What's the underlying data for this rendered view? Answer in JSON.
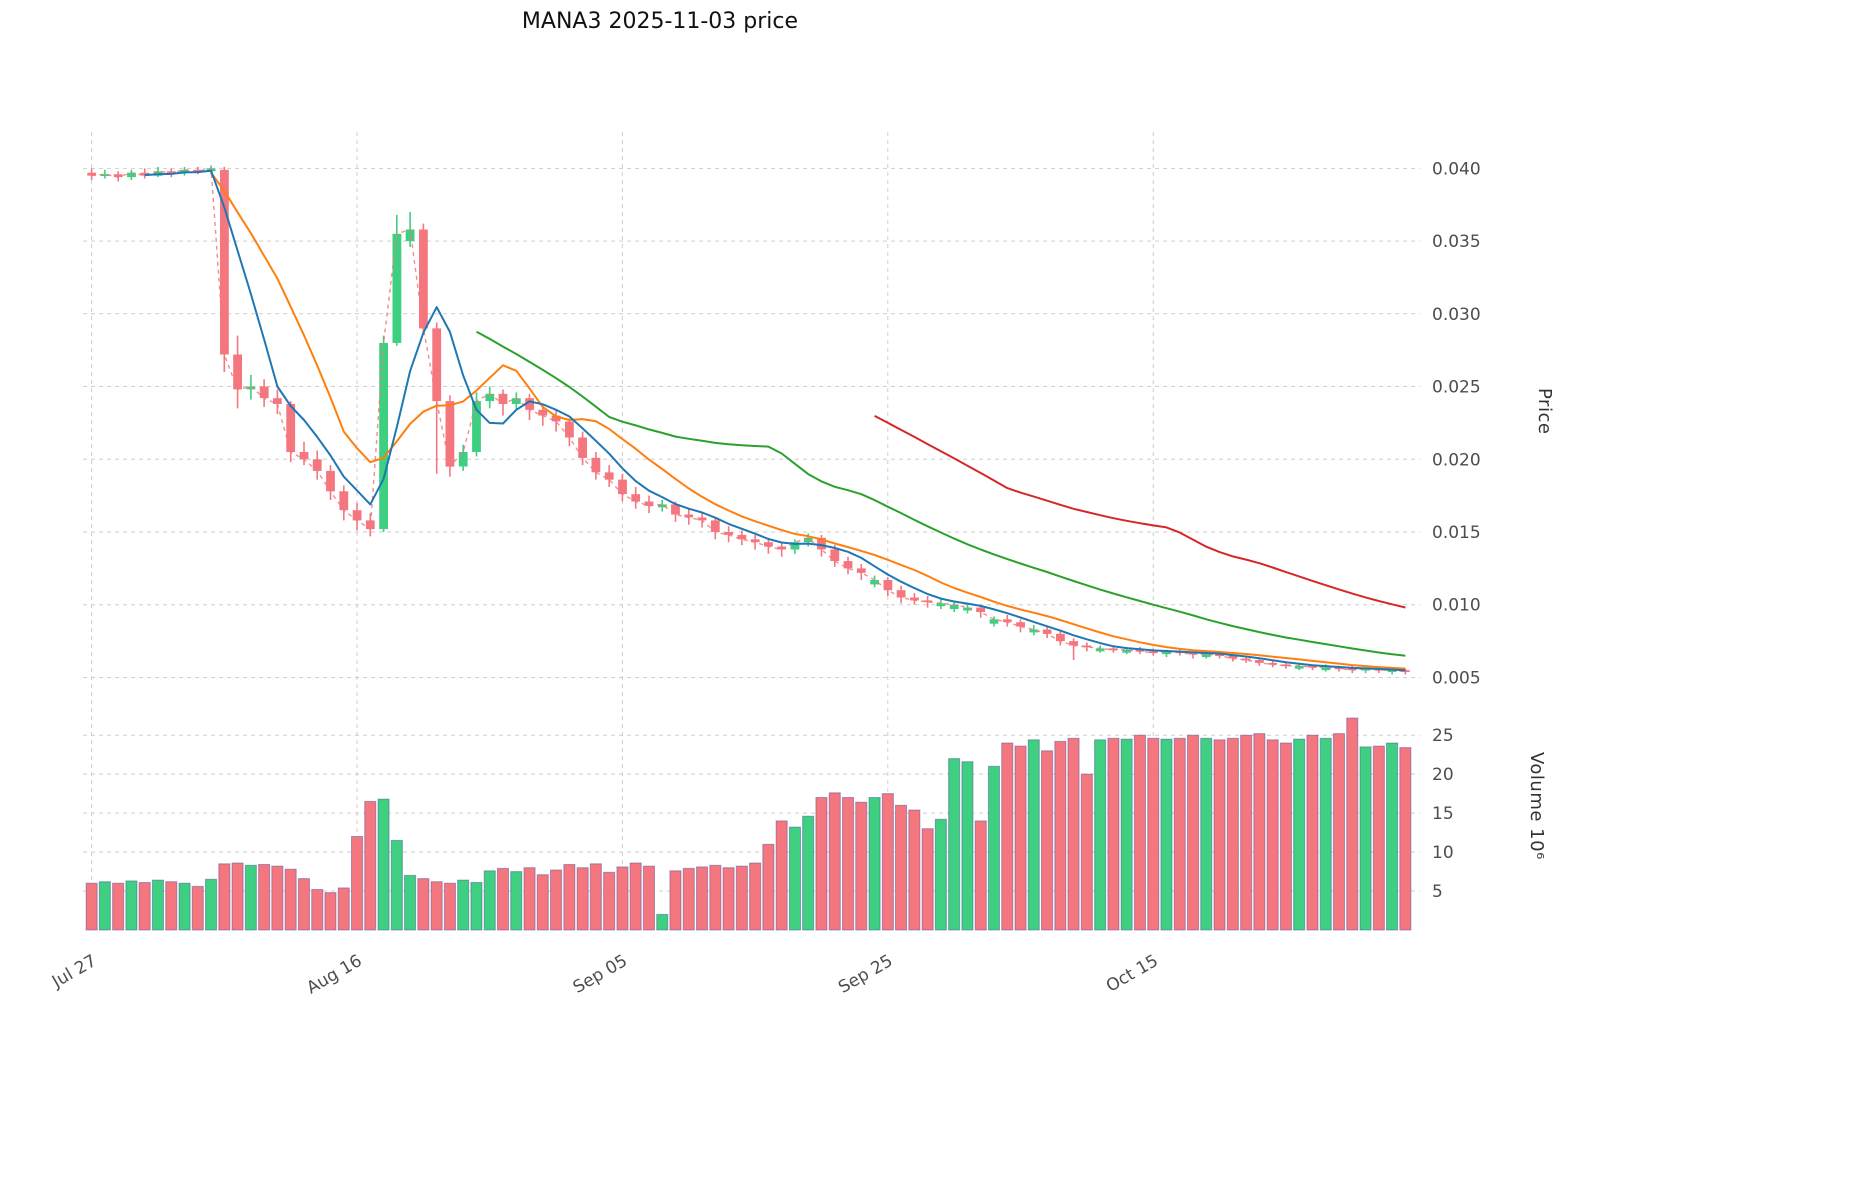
{
  "title": "MANA3  2025-11-03  price",
  "axes": {
    "price_axis_label": "Price",
    "volume_axis_label": "Volume  10⁶",
    "price_ticks": [
      0.04,
      0.035,
      0.03,
      0.025,
      0.02,
      0.015,
      0.01,
      0.005
    ],
    "volume_ticks": [
      25,
      20,
      15,
      10,
      5
    ],
    "x_ticks": [
      {
        "label": "Jul 27",
        "index": 0
      },
      {
        "label": "Aug 16",
        "index": 20
      },
      {
        "label": "Sep 05",
        "index": 40
      },
      {
        "label": "Sep 25",
        "index": 60
      },
      {
        "label": "Oct 15",
        "index": 80
      }
    ]
  },
  "colors": {
    "up": "#3ecf81",
    "down": "#f4767e",
    "ma5": "#1f77b4",
    "ma10": "#ff7f0e",
    "ma30": "#2ca02c",
    "ma60": "#d62728",
    "close_dash": "#f4767e",
    "grid": "#c9c9c9",
    "tick_text": "#4d4d4d",
    "volume_edge": "#4a4a9a"
  },
  "chart_data": {
    "type": "candlestick",
    "symbol": "MANA3",
    "date": "2025-11-03",
    "panels": [
      "price",
      "volume"
    ],
    "volume_unit": "1e6",
    "grid": true,
    "price_range": [
      0.004,
      0.0425
    ],
    "volume_range": [
      0,
      29
    ],
    "ma_windows": [
      5,
      10,
      30,
      60
    ],
    "open": [
      0.0397,
      0.0395,
      0.0396,
      0.0394,
      0.0397,
      0.0395,
      0.0398,
      0.0397,
      0.0399,
      0.0398,
      0.0399,
      0.0272,
      0.0248,
      0.025,
      0.0242,
      0.0238,
      0.0205,
      0.02,
      0.0192,
      0.0178,
      0.0165,
      0.0158,
      0.0152,
      0.028,
      0.035,
      0.0358,
      0.029,
      0.024,
      0.0195,
      0.0205,
      0.024,
      0.0245,
      0.0238,
      0.0242,
      0.0234,
      0.023,
      0.0226,
      0.0215,
      0.0201,
      0.0191,
      0.0186,
      0.0176,
      0.0171,
      0.0167,
      0.0169,
      0.0162,
      0.016,
      0.0158,
      0.015,
      0.0148,
      0.0145,
      0.0143,
      0.014,
      0.0138,
      0.0143,
      0.0146,
      0.0138,
      0.013,
      0.0125,
      0.0114,
      0.0117,
      0.011,
      0.0105,
      0.0103,
      0.0099,
      0.0097,
      0.0096,
      0.0098,
      0.0087,
      0.009,
      0.0088,
      0.0081,
      0.0083,
      0.008,
      0.0075,
      0.0072,
      0.0068,
      0.007,
      0.0067,
      0.0069,
      0.0068,
      0.0066,
      0.0068,
      0.0067,
      0.0064,
      0.0066,
      0.0065,
      0.0063,
      0.0062,
      0.006,
      0.0059,
      0.0056,
      0.0058,
      0.0055,
      0.0057,
      0.0057,
      0.0055,
      0.0056,
      0.0054,
      0.0055
    ],
    "high": [
      0.04,
      0.0399,
      0.0398,
      0.0399,
      0.04,
      0.0401,
      0.04,
      0.0401,
      0.0401,
      0.0402,
      0.0401,
      0.0285,
      0.0258,
      0.0255,
      0.0248,
      0.024,
      0.0212,
      0.0206,
      0.0196,
      0.0182,
      0.017,
      0.0163,
      0.0285,
      0.0368,
      0.037,
      0.0362,
      0.0294,
      0.0244,
      0.021,
      0.0246,
      0.025,
      0.0248,
      0.0246,
      0.0245,
      0.0238,
      0.0234,
      0.0228,
      0.0219,
      0.0205,
      0.0196,
      0.019,
      0.0181,
      0.0175,
      0.0172,
      0.0171,
      0.0166,
      0.0164,
      0.016,
      0.0154,
      0.0151,
      0.0148,
      0.0146,
      0.0143,
      0.0145,
      0.0149,
      0.0148,
      0.0141,
      0.0133,
      0.0128,
      0.012,
      0.0119,
      0.0113,
      0.0108,
      0.0106,
      0.0104,
      0.0102,
      0.01,
      0.01,
      0.0092,
      0.0093,
      0.009,
      0.0086,
      0.0085,
      0.0082,
      0.0077,
      0.0074,
      0.0072,
      0.0072,
      0.0071,
      0.0071,
      0.007,
      0.0069,
      0.0069,
      0.0068,
      0.0067,
      0.0067,
      0.0066,
      0.0065,
      0.0063,
      0.0062,
      0.0061,
      0.006,
      0.0059,
      0.0059,
      0.0058,
      0.0058,
      0.0057,
      0.0057,
      0.0056,
      0.0056
    ],
    "low": [
      0.0392,
      0.0393,
      0.0391,
      0.0392,
      0.0393,
      0.0394,
      0.0394,
      0.0395,
      0.0396,
      0.0396,
      0.026,
      0.0235,
      0.0241,
      0.0236,
      0.0231,
      0.0198,
      0.0196,
      0.0186,
      0.0172,
      0.0158,
      0.0151,
      0.0147,
      0.015,
      0.0278,
      0.0346,
      0.0286,
      0.019,
      0.0188,
      0.0192,
      0.0202,
      0.0235,
      0.023,
      0.0234,
      0.0227,
      0.0223,
      0.0219,
      0.0209,
      0.0196,
      0.0186,
      0.0181,
      0.0171,
      0.0166,
      0.0163,
      0.0164,
      0.0157,
      0.0155,
      0.0153,
      0.0145,
      0.0143,
      0.0141,
      0.0138,
      0.0135,
      0.0133,
      0.0135,
      0.014,
      0.0133,
      0.0126,
      0.0121,
      0.0117,
      0.0112,
      0.0106,
      0.0101,
      0.01,
      0.0098,
      0.0097,
      0.0095,
      0.0094,
      0.0091,
      0.0085,
      0.0085,
      0.0081,
      0.0079,
      0.0077,
      0.0072,
      0.0062,
      0.0068,
      0.0067,
      0.0067,
      0.0066,
      0.0066,
      0.0065,
      0.0064,
      0.0065,
      0.0063,
      0.0063,
      0.0063,
      0.0061,
      0.006,
      0.0058,
      0.0057,
      0.0056,
      0.0055,
      0.0055,
      0.0054,
      0.0054,
      0.0053,
      0.0053,
      0.0053,
      0.0052,
      0.0052
    ],
    "close": [
      0.0395,
      0.0396,
      0.0394,
      0.0397,
      0.0395,
      0.0398,
      0.0397,
      0.0399,
      0.0398,
      0.04,
      0.0272,
      0.0248,
      0.025,
      0.0242,
      0.0238,
      0.0205,
      0.02,
      0.0192,
      0.0178,
      0.0165,
      0.0158,
      0.0152,
      0.028,
      0.0355,
      0.0358,
      0.029,
      0.024,
      0.0195,
      0.0205,
      0.024,
      0.0245,
      0.0238,
      0.0242,
      0.0234,
      0.023,
      0.0226,
      0.0215,
      0.0201,
      0.0191,
      0.0186,
      0.0176,
      0.0171,
      0.0168,
      0.0169,
      0.0162,
      0.016,
      0.0158,
      0.015,
      0.0148,
      0.0145,
      0.0143,
      0.014,
      0.0138,
      0.0143,
      0.0146,
      0.0138,
      0.013,
      0.0125,
      0.0122,
      0.0117,
      0.011,
      0.0105,
      0.0103,
      0.0102,
      0.0101,
      0.01,
      0.0098,
      0.0095,
      0.009,
      0.0088,
      0.0085,
      0.0083,
      0.008,
      0.0075,
      0.0072,
      0.0071,
      0.007,
      0.0069,
      0.0069,
      0.0068,
      0.0067,
      0.0068,
      0.0067,
      0.0066,
      0.0066,
      0.0065,
      0.0063,
      0.0062,
      0.006,
      0.0059,
      0.0058,
      0.0058,
      0.0057,
      0.0057,
      0.0056,
      0.0055,
      0.0056,
      0.0055,
      0.0055,
      0.0054
    ],
    "volume": [
      6.0,
      6.2,
      6.0,
      6.3,
      6.1,
      6.4,
      6.2,
      6.0,
      5.6,
      6.5,
      8.5,
      8.6,
      8.3,
      8.4,
      8.2,
      7.8,
      6.6,
      5.2,
      4.8,
      5.4,
      12.0,
      16.5,
      16.8,
      11.5,
      7.0,
      6.6,
      6.2,
      6.0,
      6.4,
      6.1,
      7.6,
      7.9,
      7.5,
      8.0,
      7.1,
      7.7,
      8.4,
      8.0,
      8.5,
      7.4,
      8.1,
      8.6,
      8.2,
      2.0,
      7.6,
      7.9,
      8.1,
      8.3,
      8.0,
      8.2,
      8.6,
      11.0,
      14.0,
      13.2,
      14.6,
      17.0,
      17.6,
      17.0,
      16.4,
      17.0,
      17.5,
      16.0,
      15.4,
      13.0,
      14.2,
      22.0,
      21.6,
      14.0,
      21.0,
      24.0,
      23.6,
      24.4,
      23.0,
      24.2,
      24.6,
      20.0,
      24.4,
      24.6,
      24.5,
      25.0,
      24.6,
      24.5,
      24.6,
      25.0,
      24.6,
      24.4,
      24.6,
      25.0,
      25.2,
      24.4,
      24.0,
      24.5,
      25.0,
      24.6,
      25.2,
      27.2,
      23.5,
      23.6,
      24.0,
      23.4
    ]
  }
}
